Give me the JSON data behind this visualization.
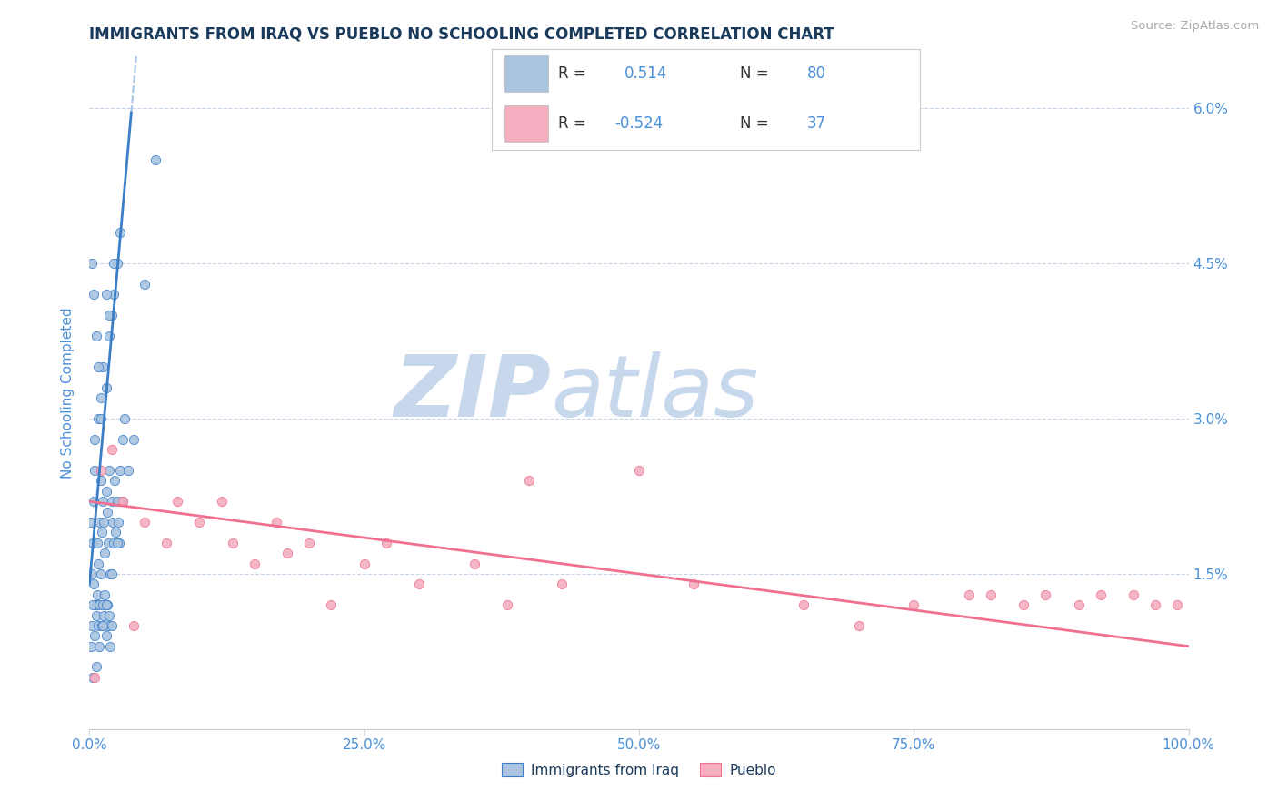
{
  "title": "IMMIGRANTS FROM IRAQ VS PUEBLO NO SCHOOLING COMPLETED CORRELATION CHART",
  "source": "Source: ZipAtlas.com",
  "ylabel": "No Schooling Completed",
  "series1_label": "Immigrants from Iraq",
  "series2_label": "Pueblo",
  "r1": 0.514,
  "n1": 80,
  "r2": -0.524,
  "n2": 37,
  "color1": "#aac4e0",
  "color2": "#f4afc0",
  "trendline1_color": "#3a7ec8",
  "trendline2_color": "#f07090",
  "title_color": "#1a3a5c",
  "axis_label_color": "#4a90d9",
  "tick_color": "#4a90d9",
  "background_color": "#ffffff",
  "grid_color": "#c8d4e8",
  "xmin": 0.0,
  "xmax": 1.0,
  "ymin": 0.0,
  "ymax": 0.065,
  "yticks": [
    0.0,
    0.015,
    0.03,
    0.045,
    0.06
  ],
  "ytick_labels": [
    "",
    "1.5%",
    "3.0%",
    "4.5%",
    "6.0%"
  ],
  "xticks": [
    0.0,
    0.25,
    0.5,
    0.75,
    1.0
  ],
  "xtick_labels": [
    "0.0%",
    "25.0%",
    "50.0%",
    "75.0%",
    "100.0%"
  ],
  "watermark_zip": "ZIP",
  "watermark_atlas": "atlas",
  "watermark_color_zip": "#c8d8ec",
  "watermark_color_atlas": "#c8d8ec",
  "legend_text_color": "#4a90d9",
  "series1_x": [
    0.001,
    0.002,
    0.003,
    0.004,
    0.005,
    0.006,
    0.007,
    0.008,
    0.009,
    0.01,
    0.011,
    0.012,
    0.013,
    0.014,
    0.015,
    0.016,
    0.017,
    0.018,
    0.019,
    0.02,
    0.021,
    0.022,
    0.023,
    0.024,
    0.025,
    0.026,
    0.027,
    0.028,
    0.03,
    0.032,
    0.001,
    0.002,
    0.003,
    0.004,
    0.005,
    0.006,
    0.007,
    0.008,
    0.009,
    0.01,
    0.011,
    0.012,
    0.013,
    0.014,
    0.015,
    0.016,
    0.017,
    0.018,
    0.019,
    0.02,
    0.005,
    0.008,
    0.01,
    0.012,
    0.015,
    0.018,
    0.02,
    0.022,
    0.025,
    0.028,
    0.003,
    0.006,
    0.009,
    0.012,
    0.015,
    0.02,
    0.025,
    0.03,
    0.035,
    0.04,
    0.002,
    0.004,
    0.006,
    0.008,
    0.01,
    0.015,
    0.018,
    0.022,
    0.05,
    0.06
  ],
  "series1_y": [
    0.02,
    0.015,
    0.018,
    0.022,
    0.025,
    0.012,
    0.018,
    0.016,
    0.02,
    0.024,
    0.019,
    0.022,
    0.02,
    0.017,
    0.023,
    0.021,
    0.018,
    0.025,
    0.015,
    0.022,
    0.02,
    0.018,
    0.024,
    0.019,
    0.022,
    0.02,
    0.018,
    0.025,
    0.028,
    0.03,
    0.008,
    0.01,
    0.012,
    0.014,
    0.009,
    0.011,
    0.013,
    0.01,
    0.012,
    0.015,
    0.01,
    0.012,
    0.011,
    0.013,
    0.009,
    0.012,
    0.01,
    0.011,
    0.008,
    0.01,
    0.028,
    0.03,
    0.032,
    0.035,
    0.033,
    0.038,
    0.04,
    0.042,
    0.045,
    0.048,
    0.005,
    0.006,
    0.008,
    0.01,
    0.012,
    0.015,
    0.018,
    0.022,
    0.025,
    0.028,
    0.045,
    0.042,
    0.038,
    0.035,
    0.03,
    0.042,
    0.04,
    0.045,
    0.043,
    0.055
  ],
  "series2_x": [
    0.005,
    0.02,
    0.03,
    0.05,
    0.07,
    0.08,
    0.1,
    0.12,
    0.13,
    0.15,
    0.17,
    0.18,
    0.2,
    0.22,
    0.25,
    0.27,
    0.3,
    0.35,
    0.38,
    0.4,
    0.43,
    0.5,
    0.55,
    0.65,
    0.7,
    0.75,
    0.8,
    0.82,
    0.85,
    0.87,
    0.9,
    0.92,
    0.95,
    0.97,
    0.99,
    0.01,
    0.04
  ],
  "series2_y": [
    0.005,
    0.027,
    0.022,
    0.02,
    0.018,
    0.022,
    0.02,
    0.022,
    0.018,
    0.016,
    0.02,
    0.017,
    0.018,
    0.012,
    0.016,
    0.018,
    0.014,
    0.016,
    0.012,
    0.024,
    0.014,
    0.025,
    0.014,
    0.012,
    0.01,
    0.012,
    0.013,
    0.013,
    0.012,
    0.013,
    0.012,
    0.013,
    0.013,
    0.012,
    0.012,
    0.025,
    0.01
  ]
}
